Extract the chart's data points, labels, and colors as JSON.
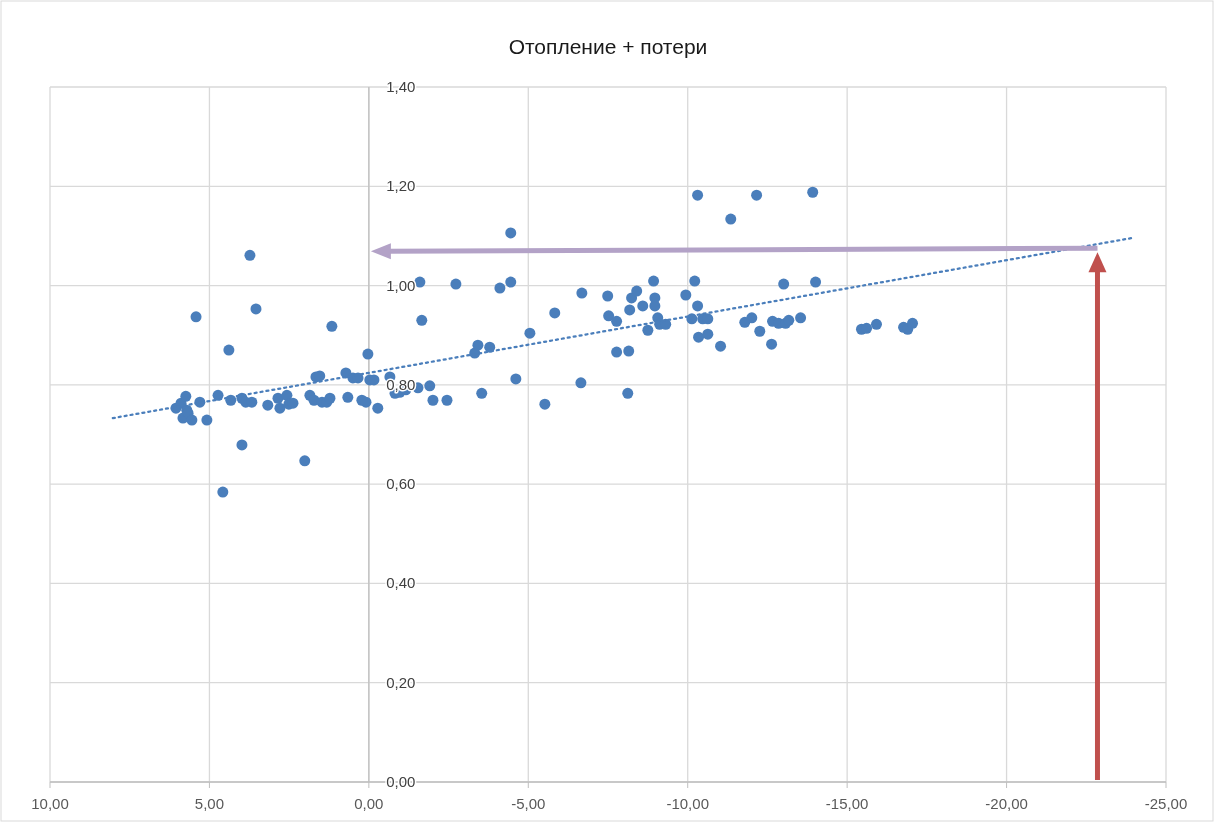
{
  "chart_data": {
    "type": "scatter",
    "title": "Отопление + потери",
    "grid": true,
    "xlim": [
      10,
      -25
    ],
    "ylim": [
      0,
      1.4
    ],
    "xticks": [
      {
        "value": 10,
        "label": "10,00"
      },
      {
        "value": 5,
        "label": "5,00"
      },
      {
        "value": 0,
        "label": "0,00"
      },
      {
        "value": -5,
        "label": "-5,00"
      },
      {
        "value": -10,
        "label": "-10,00"
      },
      {
        "value": -15,
        "label": "-15,00"
      },
      {
        "value": -20,
        "label": "-20,00"
      },
      {
        "value": -25,
        "label": "-25,00"
      }
    ],
    "yticks": [
      {
        "value": 0,
        "label": "0,00"
      },
      {
        "value": 0.2,
        "label": "0,20"
      },
      {
        "value": 0.4,
        "label": "0,40"
      },
      {
        "value": 0.6,
        "label": "0,60"
      },
      {
        "value": 0.8,
        "label": "0,80"
      },
      {
        "value": 1,
        "label": "1,00"
      },
      {
        "value": 1.2,
        "label": "1,20"
      },
      {
        "value": 1.4,
        "label": "1,40"
      }
    ],
    "series": [
      {
        "color": "#4a7ebb",
        "marker": "circle",
        "x": [
          6.05,
          5.89,
          5.74,
          5.71,
          5.83,
          5.67,
          5.55,
          5.3,
          5.42,
          5.08,
          4.73,
          4.58,
          4.39,
          4.33,
          3.98,
          3.98,
          3.86,
          3.73,
          3.67,
          3.54,
          3.17,
          2.85,
          2.79,
          2.57,
          2.51,
          2.38,
          2.01,
          1.85,
          1.72,
          1.66,
          1.54,
          1.47,
          1.32,
          1.22,
          1.16,
          0.72,
          0.66,
          0.5,
          0.34,
          0.22,
          0.09,
          0.03,
          -0.03,
          -0.16,
          -0.28,
          -0.66,
          -0.82,
          -0.97,
          -1.16,
          -1.54,
          -1.6,
          -1.66,
          -1.91,
          -2.01,
          -2.45,
          -2.73,
          -3.32,
          -3.42,
          -3.54,
          -3.79,
          -4.11,
          -4.45,
          -4.45,
          -4.61,
          -5.05,
          -5.52,
          -5.83,
          -6.68,
          -6.65,
          -7.49,
          -7.52,
          -7.77,
          -7.77,
          -8.15,
          -8.12,
          -8.18,
          -8.24,
          -8.4,
          -8.59,
          -8.75,
          -8.93,
          -8.97,
          -8.97,
          -9.06,
          -9.12,
          -9.31,
          -9.94,
          -10.13,
          -10.22,
          -10.31,
          -10.31,
          -10.34,
          -10.47,
          -10.63,
          -10.63,
          -11.03,
          -11.35,
          -11.79,
          -12.01,
          -12.16,
          -12.26,
          -12.63,
          -12.66,
          -12.85,
          -13.01,
          -13.07,
          -13.17,
          -13.54,
          -13.92,
          -14.01,
          -15.45,
          -15.61,
          -15.92,
          -16.77,
          -16.9,
          -17.05
        ],
        "values": [
          0.753,
          0.763,
          0.777,
          0.749,
          0.733,
          0.743,
          0.729,
          0.765,
          0.937,
          0.729,
          0.779,
          0.584,
          0.87,
          0.769,
          0.773,
          0.679,
          0.765,
          1.061,
          0.765,
          0.953,
          0.759,
          0.773,
          0.753,
          0.779,
          0.761,
          0.763,
          0.647,
          0.779,
          0.769,
          0.816,
          0.818,
          0.765,
          0.765,
          0.773,
          0.918,
          0.824,
          0.775,
          0.814,
          0.814,
          0.769,
          0.765,
          0.862,
          0.81,
          0.81,
          0.753,
          0.816,
          0.783,
          0.785,
          0.79,
          0.794,
          1.007,
          0.93,
          0.798,
          0.769,
          0.769,
          1.003,
          0.864,
          0.88,
          0.783,
          0.876,
          0.995,
          1.007,
          1.106,
          0.812,
          0.904,
          0.761,
          0.945,
          0.985,
          0.804,
          0.979,
          0.939,
          0.928,
          0.866,
          0.868,
          0.783,
          0.951,
          0.975,
          0.989,
          0.959,
          0.91,
          1.009,
          0.975,
          0.959,
          0.935,
          0.922,
          0.922,
          0.981,
          0.933,
          1.009,
          0.959,
          1.182,
          0.896,
          0.933,
          0.933,
          0.902,
          0.878,
          1.134,
          0.926,
          0.935,
          1.182,
          0.908,
          0.882,
          0.928,
          0.924,
          1.003,
          0.924,
          0.93,
          0.935,
          1.188,
          1.007,
          0.912,
          0.914,
          0.922,
          0.916,
          0.912,
          0.924
        ]
      },
      {
        "type": "line",
        "color": "#4a7ebb",
        "line_style": "dotted",
        "x": [
          8.03,
          -23.95
        ],
        "values": [
          0.733,
          1.096
        ]
      }
    ]
  }
}
